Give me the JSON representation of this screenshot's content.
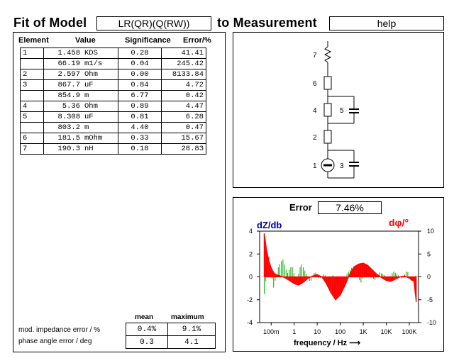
{
  "header": {
    "title_left": "Fit of Model",
    "model": "LR(QR)(Q(RW))",
    "title_right": "to Measurement",
    "help_label": "help"
  },
  "table": {
    "col_element": "Element",
    "col_value": "Value",
    "col_significance": "Significance",
    "col_error": "Error/%",
    "rows": [
      {
        "el": "1",
        "num": "1.458",
        "unit": "KDS",
        "sig": "0.28",
        "err": "41.41"
      },
      {
        "el": "",
        "num": "66.19",
        "unit": "m1/s",
        "sig": "0.04",
        "err": "245.42"
      },
      {
        "el": "2",
        "num": "2.597",
        "unit": "Ohm",
        "sig": "0.00",
        "err": "8133.84"
      },
      {
        "el": "3",
        "num": "867.7",
        "unit": "uF",
        "sig": "0.84",
        "err": "4.72"
      },
      {
        "el": "",
        "num": "854.9",
        "unit": "m",
        "sig": "6.77",
        "err": "0.42"
      },
      {
        "el": "4",
        "num": "5.36",
        "unit": "Ohm",
        "sig": "0.89",
        "err": "4.47"
      },
      {
        "el": "5",
        "num": "8.308",
        "unit": "uF",
        "sig": "0.81",
        "err": "6.28"
      },
      {
        "el": "",
        "num": "803.2",
        "unit": "m",
        "sig": "4.40",
        "err": "0.47"
      },
      {
        "el": "6",
        "num": "181.5",
        "unit": "mOhm",
        "sig": "0.33",
        "err": "15.67"
      },
      {
        "el": "7",
        "num": "190.3",
        "unit": "nH",
        "sig": "0.18",
        "err": "28.83"
      }
    ]
  },
  "summary": {
    "col_mean": "mean",
    "col_max": "maximum",
    "row1_label": "mod. impedance error / %",
    "row1_mean": "0.4%",
    "row1_max": "9.1%",
    "row2_label": "phase angle error / deg",
    "row2_mean": "0.3",
    "row2_max": "4.1"
  },
  "circuit": {
    "labels": [
      "7",
      "6",
      "4",
      "5",
      "2",
      "1",
      "3"
    ]
  },
  "error_panel": {
    "label": "Error",
    "value": "7.46%",
    "left_axis_label": "dZ/db",
    "right_axis_label": "dφ/°",
    "xlabel": "frequency / Hz",
    "colors": {
      "left": "#0000a0",
      "right": "#ff0000",
      "green": "#00b000"
    }
  },
  "chart_data": {
    "type": "line",
    "xlabel": "frequency / Hz",
    "x_ticks": [
      "100m",
      "1",
      "10",
      "100",
      "1K",
      "10K",
      "100K"
    ],
    "y_left_ticks": [
      "4",
      "2",
      "0",
      "-2",
      "-4"
    ],
    "y_right_ticks": [
      "10",
      "5",
      "0",
      "-5",
      "-10"
    ],
    "y_left_range": [
      -4,
      4
    ],
    "y_right_range": [
      -10,
      10
    ],
    "series": [
      {
        "log10_freq": [
          -1.3,
          -1.2,
          -1.1,
          -1.0,
          -0.9,
          -0.8,
          -0.6,
          -0.4,
          -0.2,
          0.0,
          0.2,
          0.4,
          0.6,
          0.8,
          1.0,
          1.2,
          1.4,
          1.6,
          1.8,
          2.0,
          2.2,
          2.4,
          2.6,
          2.8,
          3.0,
          3.2,
          3.4,
          3.6,
          3.8,
          4.0,
          4.2,
          4.4,
          4.6,
          4.8,
          5.0,
          5.2,
          5.3
        ],
        "values_right": [
          9.5,
          6.0,
          3.5,
          2.0,
          1.0,
          0.5,
          0.2,
          -0.2,
          -0.8,
          -1.5,
          -1.8,
          -1.2,
          -0.3,
          0.2,
          0.5,
          0.0,
          -1.5,
          -3.5,
          -5.0,
          -4.0,
          -2.0,
          0.5,
          2.2,
          2.8,
          3.0,
          2.5,
          1.5,
          0.5,
          -0.2,
          -0.8,
          -1.0,
          -0.5,
          0.0,
          0.2,
          -0.3,
          -1.0,
          -5.5
        ]
      },
      {
        "log10_freq": [
          -1.3,
          -1.1,
          -0.9,
          -0.7,
          -0.5,
          -0.3,
          -0.1,
          0.1,
          0.3,
          0.5,
          0.7,
          0.9,
          1.1,
          1.3,
          1.5,
          1.7,
          1.9,
          2.1,
          2.3,
          2.5,
          2.7,
          2.9,
          3.1,
          3.3,
          3.5,
          3.7,
          3.9,
          4.1,
          4.3,
          4.5,
          4.7,
          4.9,
          5.1,
          5.3
        ],
        "values_left": [
          -1.5,
          1.8,
          -1.0,
          0.8,
          1.6,
          0.3,
          1.0,
          -0.5,
          1.2,
          0.4,
          -0.5,
          0.5,
          -0.2,
          0.3,
          -0.5,
          0.2,
          -0.8,
          -0.4,
          0.3,
          0.8,
          0.2,
          -0.5,
          0.5,
          0.2,
          -0.3,
          0.4,
          0.2,
          -0.3,
          0.5,
          0.2,
          -0.2,
          0.6,
          -0.5,
          0.2
        ]
      }
    ]
  }
}
